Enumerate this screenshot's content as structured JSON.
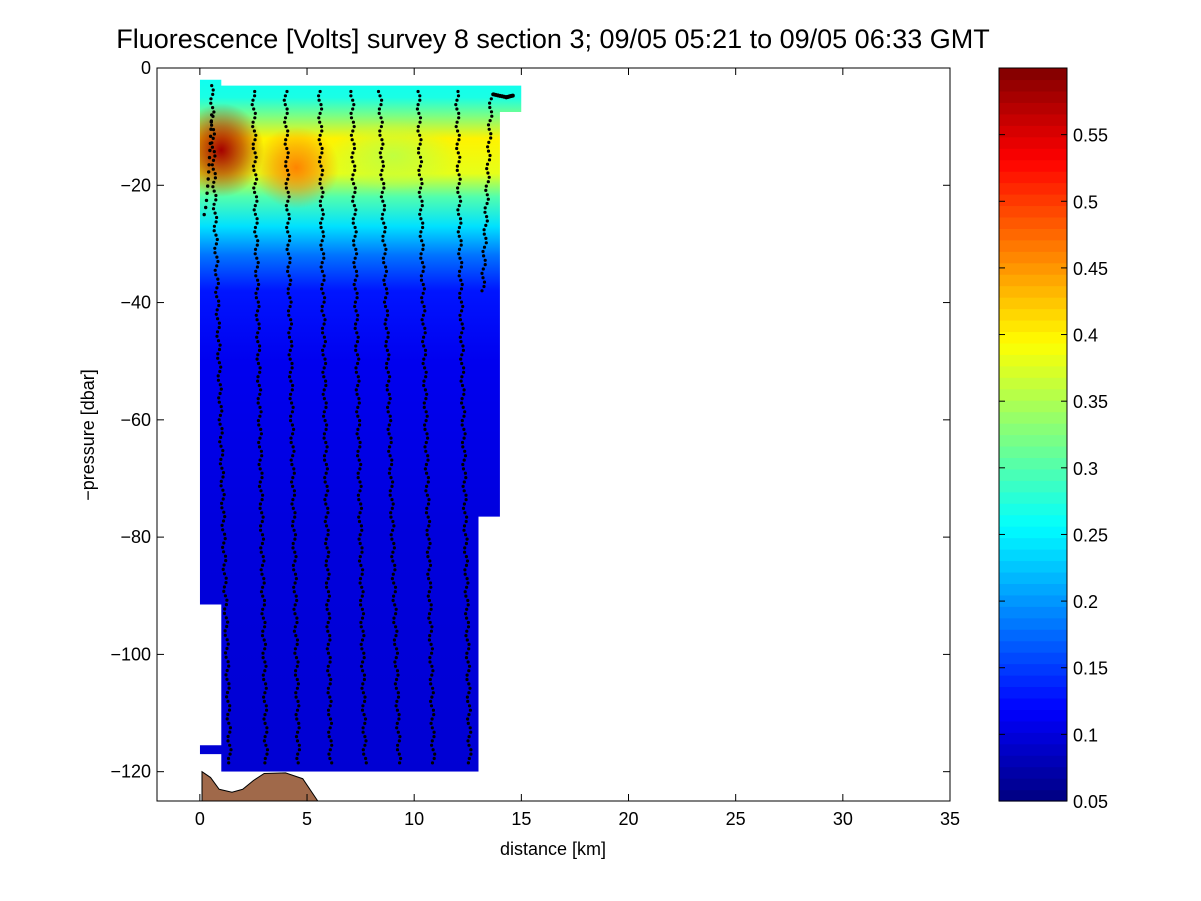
{
  "chart_data": {
    "type": "heatmap",
    "title": "Fluorescence [Volts] survey 8 section 3; 09/05 05:21 to 09/05 06:33 GMT",
    "xlabel": "distance [km]",
    "ylabel": "−pressure [dbar]",
    "xlim": [
      -2,
      35
    ],
    "ylim": [
      -125,
      0
    ],
    "xticks": [
      0,
      5,
      10,
      15,
      20,
      25,
      30,
      35
    ],
    "yticks": [
      0,
      -20,
      -40,
      -60,
      -80,
      -100,
      -120
    ],
    "colorbar": {
      "min": 0.05,
      "max": 0.6,
      "ticks": [
        0.05,
        0.1,
        0.15,
        0.2,
        0.25,
        0.3,
        0.35,
        0.4,
        0.45,
        0.5,
        0.55
      ],
      "colormap": "jet"
    },
    "field_levels": [
      {
        "depth": 0,
        "value": 0.26
      },
      {
        "depth": -5,
        "value": 0.27
      },
      {
        "depth": -8,
        "value": 0.32
      },
      {
        "depth": -12,
        "value": 0.4
      },
      {
        "depth": -18,
        "value": 0.38
      },
      {
        "depth": -22,
        "value": 0.3
      },
      {
        "depth": -27,
        "value": 0.24
      },
      {
        "depth": -32,
        "value": 0.18
      },
      {
        "depth": -38,
        "value": 0.13
      },
      {
        "depth": -50,
        "value": 0.11
      },
      {
        "depth": -80,
        "value": 0.1
      },
      {
        "depth": -120,
        "value": 0.095
      }
    ],
    "hotspots": [
      {
        "x": 1.0,
        "y": -14,
        "value": 0.58,
        "rx": 2.0,
        "ry": 8
      },
      {
        "x": 4.5,
        "y": -17,
        "value": 0.46,
        "rx": 2.0,
        "ry": 7
      },
      {
        "x": 9.0,
        "y": -15,
        "value": 0.36,
        "rx": 3.0,
        "ry": 6
      }
    ],
    "section_outline": [
      [
        0,
        -2
      ],
      [
        1,
        -2
      ],
      [
        1,
        -3
      ],
      [
        15,
        -3
      ],
      [
        15,
        -7.5
      ],
      [
        14,
        -7.5
      ],
      [
        14,
        -76.5
      ],
      [
        13,
        -76.5
      ],
      [
        13,
        -120
      ],
      [
        1,
        -120
      ],
      [
        1,
        -117
      ],
      [
        0,
        -117
      ],
      [
        0,
        -115.5
      ],
      [
        1,
        -115.5
      ],
      [
        1,
        -91.5
      ],
      [
        0,
        -91.5
      ]
    ],
    "casts": [
      {
        "x_top": 0.55,
        "x_bottom": 1.4,
        "top": -3,
        "bottom": -118.5
      },
      {
        "x_top": 2.5,
        "x_bottom": 3.1,
        "top": -4,
        "bottom": -118.5
      },
      {
        "x_top": 4.0,
        "x_bottom": 4.6,
        "top": -4,
        "bottom": -118.5
      },
      {
        "x_top": 5.6,
        "x_bottom": 6.1,
        "top": -4,
        "bottom": -118.5
      },
      {
        "x_top": 7.1,
        "x_bottom": 7.7,
        "top": -4,
        "bottom": -118.5
      },
      {
        "x_top": 8.4,
        "x_bottom": 9.3,
        "top": -4,
        "bottom": -118.5
      },
      {
        "x_top": 10.2,
        "x_bottom": 10.9,
        "top": -4,
        "bottom": -118.5
      },
      {
        "x_top": 12.0,
        "x_bottom": 12.6,
        "top": -4,
        "bottom": -118.5
      },
      {
        "x_top": 13.6,
        "x_bottom": 13.2,
        "top": -4.5,
        "bottom": -38
      }
    ],
    "surface_track": [
      [
        13.7,
        -4.5
      ],
      [
        14.3,
        -5
      ],
      [
        14.6,
        -4.7
      ]
    ],
    "first_cast_lower_start": [
      0.2,
      -25
    ],
    "seafloor": [
      [
        0.1,
        -120
      ],
      [
        0.5,
        -121
      ],
      [
        0.9,
        -123
      ],
      [
        1.5,
        -123.5
      ],
      [
        2.0,
        -123
      ],
      [
        2.5,
        -121.5
      ],
      [
        3.0,
        -120.3
      ],
      [
        4.0,
        -120.2
      ],
      [
        4.8,
        -121.2
      ],
      [
        5.5,
        -125
      ],
      [
        0.1,
        -125
      ]
    ],
    "colors": {
      "seafloor": "#a0694a",
      "cast_marker": "#000000"
    }
  }
}
